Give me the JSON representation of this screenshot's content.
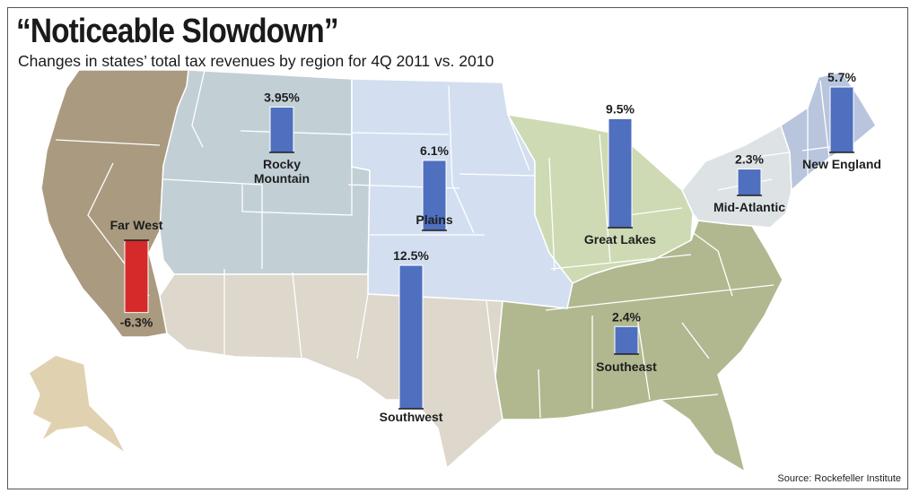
{
  "header": {
    "title": "“Noticeable Slowdown”",
    "subtitle": "Changes in states’ total tax revenues by region for 4Q 2011 vs. 2010"
  },
  "footer": {
    "source": "Source: Rockefeller Institute"
  },
  "colors": {
    "positive_bar": "#4f6fbf",
    "negative_bar": "#d42a2a",
    "far_west": "#aa9a80",
    "rocky_mountain": "#c2d0d6",
    "plains": "#d3dff0",
    "great_lakes": "#cddab3",
    "new_england": "#b8c5dd",
    "mid_atlantic": "#dde3e5",
    "southeast": "#b1b88f",
    "southwest": "#ddd7cc",
    "alaska": "#e0d2b0"
  },
  "chart_data": {
    "type": "bar",
    "title": "“Noticeable Slowdown”",
    "subtitle": "Changes in states’ total tax revenues by region for 4Q 2011 vs. 2010",
    "unit": "%",
    "categories": [
      "Far West",
      "Rocky Mountain",
      "Plains",
      "Southwest",
      "Great Lakes",
      "Southeast",
      "Mid-Atlantic",
      "New England"
    ],
    "values": [
      -6.3,
      3.95,
      6.1,
      12.5,
      9.5,
      2.4,
      2.3,
      5.7
    ],
    "value_labels": [
      "-6.3%",
      "3.95%",
      "6.1%",
      "12.5%",
      "9.5%",
      "2.4%",
      "2.3%",
      "5.7%"
    ],
    "region_labels": [
      [
        "Far West"
      ],
      [
        "Rocky",
        "Mountain"
      ],
      [
        "Plains"
      ],
      [
        "Southwest"
      ],
      [
        "Great Lakes"
      ],
      [
        "Southeast"
      ],
      [
        "Mid-Atlantic"
      ],
      [
        "New England"
      ]
    ],
    "source": "Source: Rockefeller Institute"
  }
}
